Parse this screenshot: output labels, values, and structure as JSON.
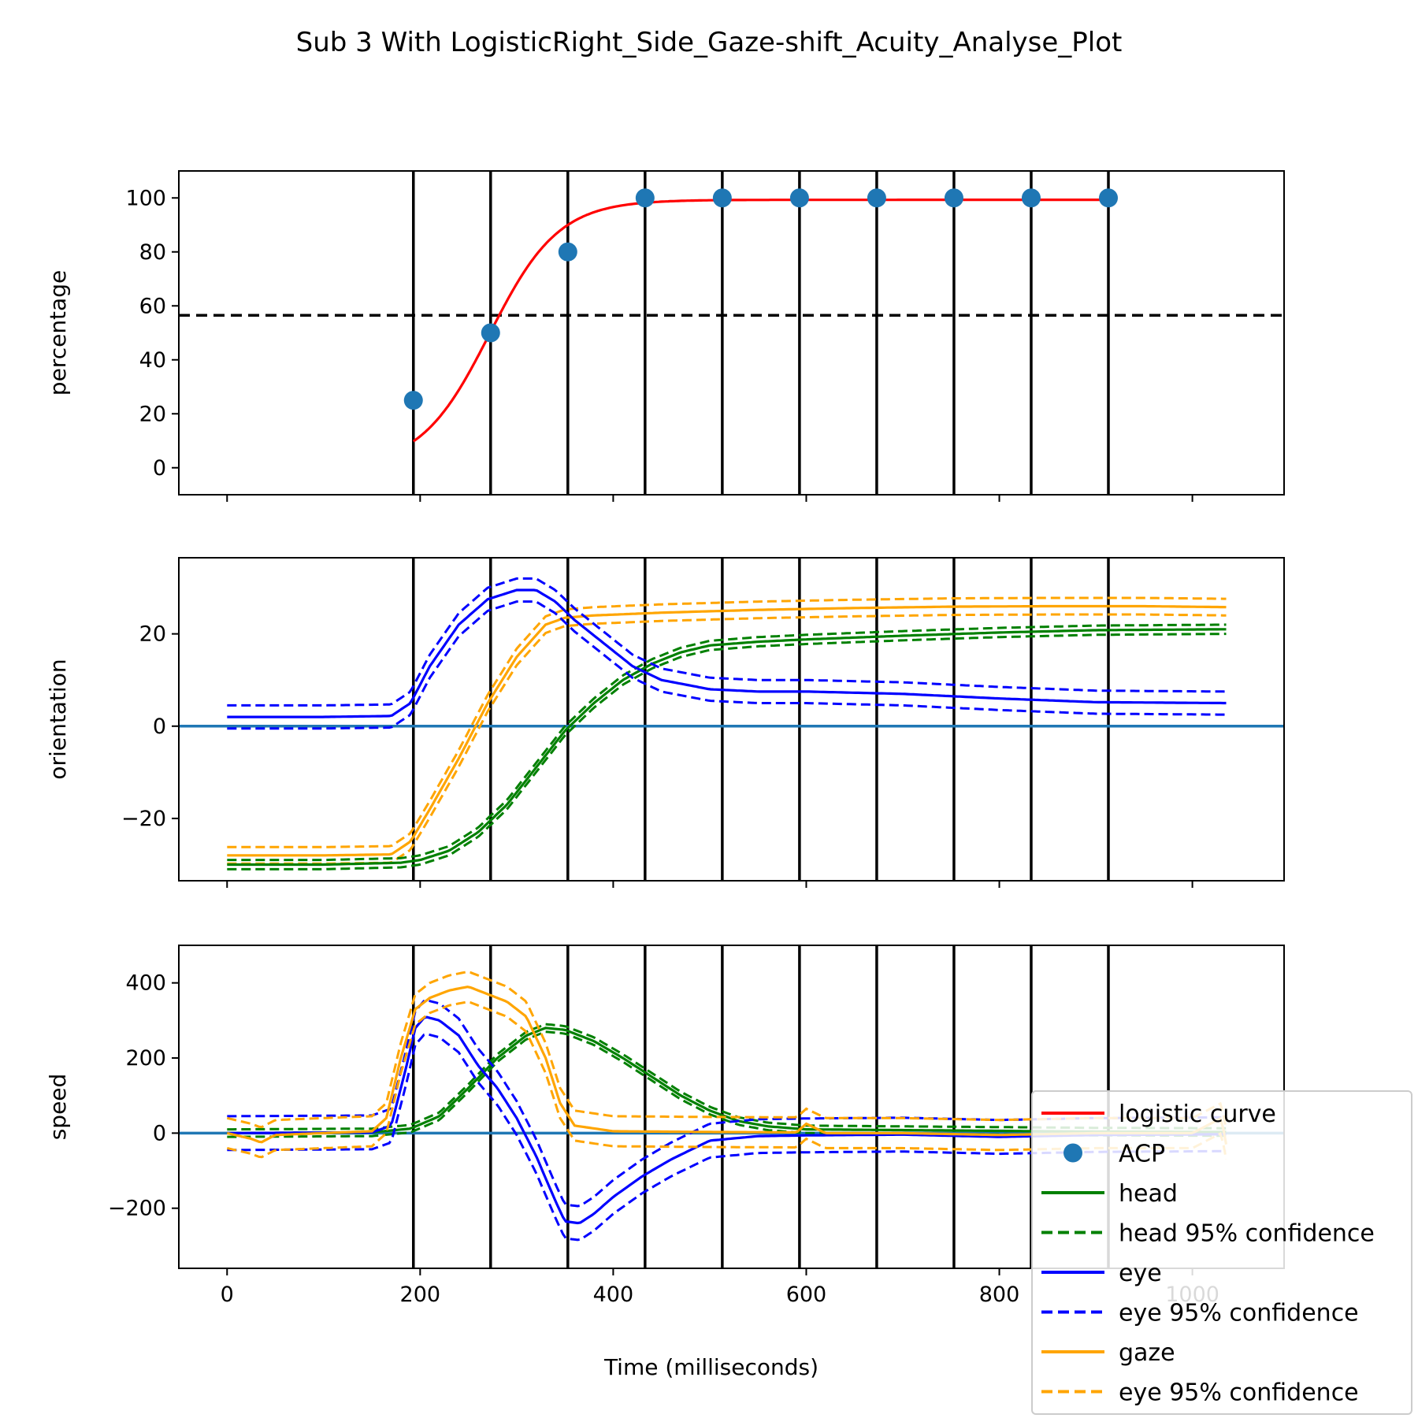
{
  "chart_data": {
    "title": "Sub 3 With LogisticRight_Side_Gaze-shift_Acuity_Analyse_Plot",
    "xlabel": "Time (milliseconds)",
    "xlim": [
      -50,
      1095
    ],
    "xticks": [
      0,
      200,
      400,
      600,
      800,
      1000
    ],
    "xtick_labels": [
      "0",
      "200",
      "400",
      "600",
      "800",
      "1000"
    ],
    "vlines": [
      193,
      273,
      353,
      433,
      513,
      593,
      673,
      753,
      833,
      913
    ],
    "legend": {
      "position": "lower-right",
      "entries": [
        {
          "label": "logistic curve",
          "color": "#ff0000",
          "style": "line"
        },
        {
          "label": "ACP",
          "color": "#1f77b4",
          "style": "marker"
        },
        {
          "label": "head",
          "color": "#008000",
          "style": "line"
        },
        {
          "label": "head 95% confidence",
          "color": "#008000",
          "style": "dashed"
        },
        {
          "label": "eye",
          "color": "#0000ff",
          "style": "line"
        },
        {
          "label": "eye 95% confidence",
          "color": "#0000ff",
          "style": "dashed"
        },
        {
          "label": "gaze",
          "color": "#ffa500",
          "style": "line"
        },
        {
          "label": "eye 95% confidence",
          "color": "#ffa500",
          "style": "dashed"
        }
      ]
    },
    "panels": [
      {
        "type": "scatter",
        "ylabel": "percentage",
        "ylim": [
          -10,
          110
        ],
        "yticks": [
          0,
          20,
          40,
          60,
          80,
          100
        ],
        "ytick_labels": [
          "0",
          "20",
          "40",
          "60",
          "80",
          "100"
        ],
        "hline": {
          "y": 56.5,
          "style": "dashed",
          "color": "#000000"
        },
        "acp_points": {
          "x": [
            193,
            273,
            353,
            433,
            513,
            593,
            673,
            753,
            833,
            913
          ],
          "y": [
            25,
            50,
            80,
            100,
            100,
            100,
            100,
            100,
            100,
            100
          ]
        },
        "logistic_curve": {
          "x_range": [
            193,
            913
          ],
          "L": 99.3,
          "x0": 272,
          "k": 0.028
        }
      },
      {
        "type": "line",
        "ylabel": "orientation",
        "ylim": [
          -33.5,
          36.5
        ],
        "yticks": [
          -20,
          0,
          20
        ],
        "ytick_labels": [
          "−20",
          "0",
          "20"
        ],
        "hline": {
          "y": 0,
          "color": "#1f77b4"
        },
        "series": [
          {
            "legend": "gaze",
            "color": "#ffa500",
            "ci": 1.8,
            "x": [
              0,
              100,
              170,
              190,
              210,
              240,
              270,
              300,
              330,
              350,
              380,
              450,
              550,
              650,
              750,
              850,
              950,
              1035
            ],
            "y": [
              -28,
              -28,
              -27.8,
              -25,
              -18,
              -7,
              5,
              15,
              22,
              23.5,
              24,
              24.6,
              25.2,
              25.6,
              25.9,
              26,
              26,
              25.8
            ]
          },
          {
            "legend": "head",
            "color": "#008000",
            "ci": 1.0,
            "x": [
              0,
              100,
              180,
              200,
              230,
              260,
              290,
              320,
              350,
              380,
              410,
              440,
              470,
              500,
              550,
              600,
              700,
              800,
              900,
              1035
            ],
            "y": [
              -30,
              -30,
              -29.6,
              -29,
              -27,
              -23,
              -17,
              -9,
              -1,
              5,
              10,
              13.5,
              16,
              17.5,
              18.3,
              18.8,
              19.6,
              20.3,
              20.8,
              21
            ]
          },
          {
            "legend": "eye",
            "color": "#0000ff",
            "ci": 2.5,
            "x": [
              0,
              100,
              170,
              190,
              210,
              240,
              270,
              300,
              320,
              340,
              360,
              390,
              420,
              450,
              500,
              550,
              600,
              700,
              800,
              900,
              1035
            ],
            "y": [
              2,
              2,
              2.2,
              5,
              13,
              22,
              27.5,
              29.5,
              29.5,
              27,
              23,
              18,
              13,
              10,
              8,
              7.5,
              7.5,
              7,
              6,
              5.2,
              5
            ]
          }
        ]
      },
      {
        "type": "line",
        "ylabel": "speed",
        "ylim": [
          -360,
          500
        ],
        "yticks": [
          -200,
          0,
          200,
          400
        ],
        "ytick_labels": [
          "−200",
          "0",
          "200",
          "400"
        ],
        "hline": {
          "y": 0,
          "color": "#1f77b4"
        },
        "series": [
          {
            "legend": "head",
            "color": "#008000",
            "ci": 10,
            "x": [
              0,
              150,
              190,
              220,
              250,
              280,
              310,
              330,
              350,
              380,
              410,
              440,
              470,
              500,
              530,
              560,
              600,
              700,
              800,
              900,
              1035
            ],
            "y": [
              0,
              2,
              12,
              45,
              120,
              200,
              260,
              280,
              275,
              245,
              200,
              150,
              100,
              60,
              32,
              18,
              10,
              8,
              6,
              4,
              3
            ]
          },
          {
            "legend": "eye",
            "color": "#0000ff",
            "ci": 45,
            "x": [
              0,
              150,
              170,
              185,
              195,
              205,
              220,
              240,
              260,
              280,
              300,
              320,
              340,
              350,
              365,
              380,
              400,
              430,
              460,
              500,
              550,
              600,
              700,
              800,
              900,
              1035
            ],
            "y": [
              0,
              2,
              20,
              170,
              280,
              310,
              300,
              260,
              180,
              120,
              40,
              -60,
              -180,
              -235,
              -240,
              -215,
              -170,
              -115,
              -70,
              -20,
              -8,
              -6,
              -4,
              -10,
              -5,
              -3
            ]
          },
          {
            "legend": "gaze",
            "color": "#ffa500",
            "ci": 40,
            "x": [
              0,
              25,
              35,
              50,
              150,
              165,
              180,
              195,
              210,
              230,
              250,
              270,
              290,
              310,
              330,
              345,
              360,
              400,
              500,
              590,
              600,
              620,
              700,
              800,
              900,
              1000,
              1030,
              1035
            ],
            "y": [
              0,
              -15,
              -25,
              -5,
              5,
              40,
              200,
              330,
              360,
              380,
              390,
              370,
              350,
              310,
              200,
              80,
              20,
              5,
              3,
              2,
              25,
              0,
              0,
              -5,
              0,
              0,
              40,
              -30
            ]
          }
        ]
      }
    ]
  }
}
